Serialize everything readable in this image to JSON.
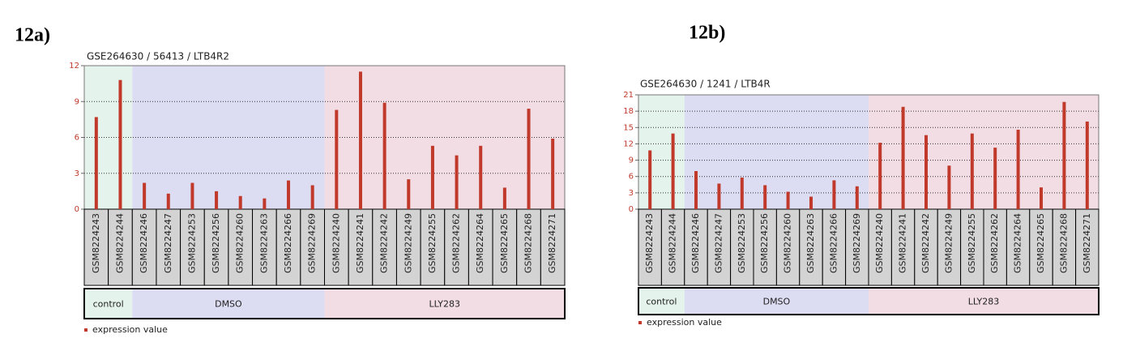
{
  "chart_data": [
    {
      "type": "bar",
      "panel_label": "12a)",
      "title": "GSE264630 / 56413 / LTB4R2",
      "categories": [
        "GSM8224243",
        "GSM8224244",
        "GSM8224246",
        "GSM8224247",
        "GSM8224253",
        "GSM8224256",
        "GSM8224260",
        "GSM8224263",
        "GSM8224266",
        "GSM8224269",
        "GSM8224240",
        "GSM8224241",
        "GSM8224242",
        "GSM8224249",
        "GSM8224255",
        "GSM8224262",
        "GSM8224264",
        "GSM8224265",
        "GSM8224268",
        "GSM8224271"
      ],
      "series": [
        {
          "name": "expression value",
          "color": "#c0392b",
          "values": [
            7.7,
            10.8,
            2.2,
            1.3,
            2.2,
            1.5,
            1.1,
            0.9,
            2.4,
            2.0,
            8.3,
            11.5,
            8.9,
            2.5,
            5.3,
            4.5,
            5.3,
            1.8,
            8.4,
            5.9
          ]
        }
      ],
      "groups": [
        {
          "label": "control",
          "span": 2,
          "color": "#e4f3ec"
        },
        {
          "label": "DMSO",
          "span": 8,
          "color": "#dcdcf2"
        },
        {
          "label": "LLY283",
          "span": 10,
          "color": "#f2dde5"
        }
      ],
      "ylim": [
        0,
        12
      ],
      "yticks": [
        0,
        3,
        6,
        9,
        12
      ],
      "grid": true
    },
    {
      "type": "bar",
      "panel_label": "12b)",
      "title": "GSE264630 / 1241 / LTB4R",
      "categories": [
        "GSM8224243",
        "GSM8224244",
        "GSM8224246",
        "GSM8224247",
        "GSM8224253",
        "GSM8224256",
        "GSM8224260",
        "GSM8224263",
        "GSM8224266",
        "GSM8224269",
        "GSM8224240",
        "GSM8224241",
        "GSM8224242",
        "GSM8224249",
        "GSM8224255",
        "GSM8224262",
        "GSM8224264",
        "GSM8224265",
        "GSM8224268",
        "GSM8224271"
      ],
      "series": [
        {
          "name": "expression value",
          "color": "#c0392b",
          "values": [
            10.8,
            13.9,
            7.0,
            4.7,
            5.8,
            4.4,
            3.2,
            2.3,
            5.3,
            4.2,
            12.2,
            18.8,
            13.6,
            8.0,
            13.9,
            11.3,
            14.6,
            4.0,
            19.7,
            16.1
          ]
        }
      ],
      "groups": [
        {
          "label": "control",
          "span": 2,
          "color": "#e4f3ec"
        },
        {
          "label": "DMSO",
          "span": 8,
          "color": "#dcdcf2"
        },
        {
          "label": "LLY283",
          "span": 10,
          "color": "#f2dde5"
        }
      ],
      "ylim": [
        0,
        21
      ],
      "yticks": [
        0,
        3,
        6,
        9,
        12,
        15,
        18,
        21
      ],
      "grid": true
    }
  ]
}
